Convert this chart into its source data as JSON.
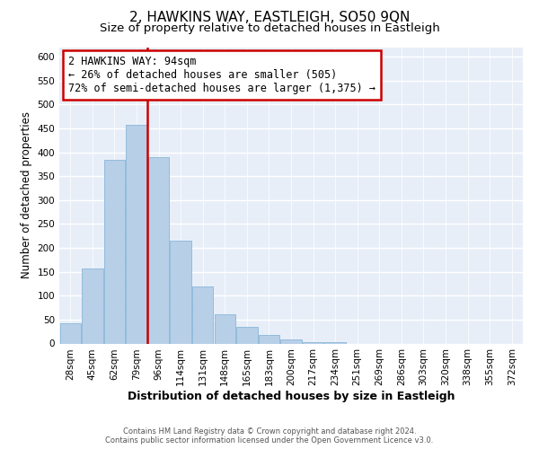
{
  "title": "2, HAWKINS WAY, EASTLEIGH, SO50 9QN",
  "subtitle": "Size of property relative to detached houses in Eastleigh",
  "xlabel": "Distribution of detached houses by size in Eastleigh",
  "ylabel": "Number of detached properties",
  "bar_labels": [
    "28sqm",
    "45sqm",
    "62sqm",
    "79sqm",
    "96sqm",
    "114sqm",
    "131sqm",
    "148sqm",
    "165sqm",
    "183sqm",
    "200sqm",
    "217sqm",
    "234sqm",
    "251sqm",
    "269sqm",
    "286sqm",
    "303sqm",
    "320sqm",
    "338sqm",
    "355sqm",
    "372sqm"
  ],
  "bar_heights": [
    42,
    157,
    385,
    458,
    390,
    215,
    120,
    62,
    35,
    18,
    8,
    3,
    3,
    0,
    0,
    0,
    0,
    0,
    0,
    0,
    0
  ],
  "bar_color": "#b8cfe8",
  "bar_edge_color": "#7aafd4",
  "vline_x_index": 3.5,
  "vline_color": "#cc0000",
  "annotation_line1": "2 HAWKINS WAY: 94sqm",
  "annotation_line2": "← 26% of detached houses are smaller (505)",
  "annotation_line3": "72% of semi-detached houses are larger (1,375) →",
  "annotation_box_color": "#ffffff",
  "annotation_box_edge": "#cc0000",
  "ylim": [
    0,
    620
  ],
  "yticks": [
    0,
    50,
    100,
    150,
    200,
    250,
    300,
    350,
    400,
    450,
    500,
    550,
    600
  ],
  "footer_line1": "Contains HM Land Registry data © Crown copyright and database right 2024.",
  "footer_line2": "Contains public sector information licensed under the Open Government Licence v3.0.",
  "background_color": "#ffffff",
  "plot_background": "#e8eef8",
  "grid_color": "#ffffff",
  "title_fontsize": 11,
  "subtitle_fontsize": 9.5,
  "xlabel_fontsize": 9,
  "ylabel_fontsize": 8.5,
  "tick_fontsize": 7.5,
  "annotation_fontsize": 8.5,
  "footer_fontsize": 6.0
}
